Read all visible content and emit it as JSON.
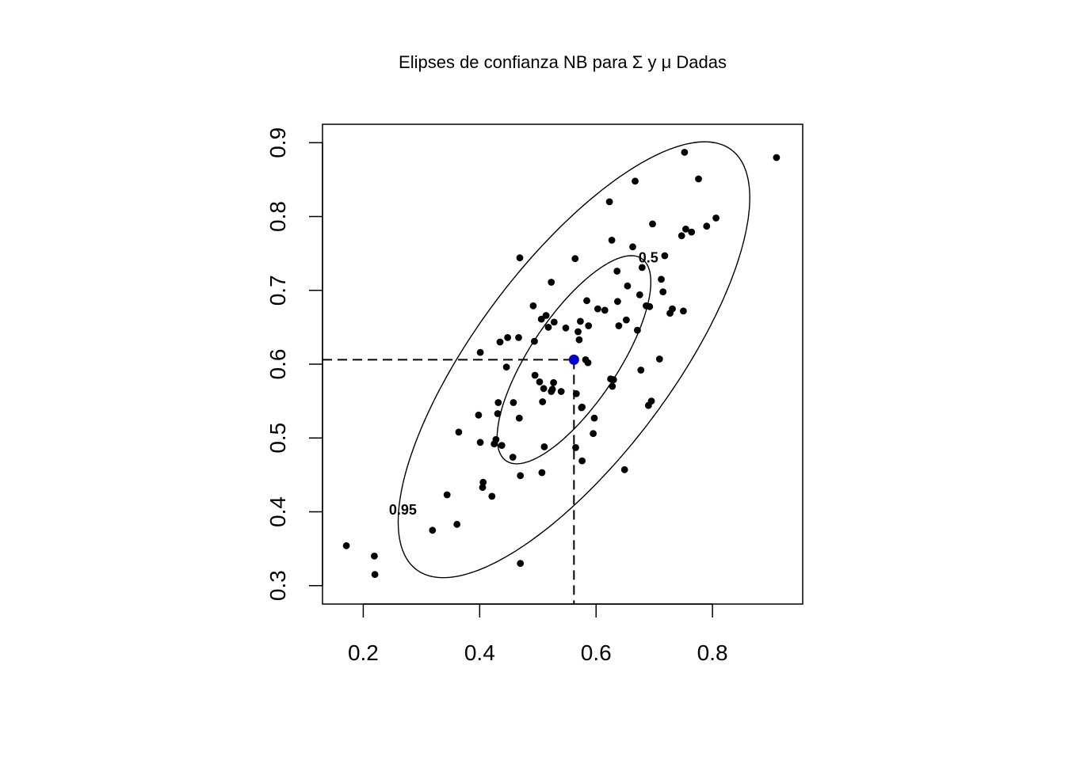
{
  "chart_data": {
    "type": "scatter",
    "title": "Elipses de confianza NB para Σ y μ Dadas",
    "xlabel": "",
    "ylabel": "",
    "xlim": [
      0.13,
      0.955
    ],
    "ylim": [
      0.275,
      0.925
    ],
    "x_ticks": [
      0.2,
      0.4,
      0.6,
      0.8
    ],
    "x_tick_labels": [
      "0.2",
      "0.4",
      "0.6",
      "0.8"
    ],
    "y_ticks": [
      0.3,
      0.4,
      0.5,
      0.6,
      0.7,
      0.8,
      0.9
    ],
    "y_tick_labels": [
      "0.3",
      "0.4",
      "0.5",
      "0.6",
      "0.7",
      "0.8",
      "0.9"
    ],
    "grid": false,
    "colors": {
      "points": "#000000",
      "mean": "#0000cc",
      "lines": "#000000"
    },
    "mean": {
      "x": 0.562,
      "y": 0.606
    },
    "ellipses": [
      {
        "label": "0.5",
        "center": [
          0.562,
          0.606
        ],
        "x_range": [
          0.43,
          0.694
        ],
        "y_range": [
          0.465,
          0.747
        ],
        "label_at": [
          0.69,
          0.738
        ]
      },
      {
        "label": "0.95",
        "center": [
          0.562,
          0.606
        ],
        "x_range": [
          0.26,
          0.864
        ],
        "y_range": [
          0.3165,
          0.907
        ],
        "label_at": [
          0.268,
          0.396
        ]
      }
    ],
    "points": [
      [
        0.171,
        0.354
      ],
      [
        0.219,
        0.34
      ],
      [
        0.22,
        0.315
      ],
      [
        0.319,
        0.375
      ],
      [
        0.344,
        0.423
      ],
      [
        0.361,
        0.383
      ],
      [
        0.364,
        0.508
      ],
      [
        0.398,
        0.531
      ],
      [
        0.401,
        0.616
      ],
      [
        0.401,
        0.494
      ],
      [
        0.405,
        0.433
      ],
      [
        0.406,
        0.44
      ],
      [
        0.421,
        0.421
      ],
      [
        0.425,
        0.492
      ],
      [
        0.428,
        0.498
      ],
      [
        0.431,
        0.533
      ],
      [
        0.432,
        0.548
      ],
      [
        0.435,
        0.63
      ],
      [
        0.438,
        0.49
      ],
      [
        0.446,
        0.596
      ],
      [
        0.448,
        0.636
      ],
      [
        0.457,
        0.474
      ],
      [
        0.458,
        0.548
      ],
      [
        0.467,
        0.636
      ],
      [
        0.468,
        0.527
      ],
      [
        0.469,
        0.744
      ],
      [
        0.47,
        0.449
      ],
      [
        0.47,
        0.33
      ],
      [
        0.492,
        0.679
      ],
      [
        0.494,
        0.631
      ],
      [
        0.495,
        0.585
      ],
      [
        0.503,
        0.576
      ],
      [
        0.506,
        0.661
      ],
      [
        0.507,
        0.453
      ],
      [
        0.508,
        0.549
      ],
      [
        0.51,
        0.567
      ],
      [
        0.511,
        0.488
      ],
      [
        0.514,
        0.666
      ],
      [
        0.518,
        0.65
      ],
      [
        0.523,
        0.711
      ],
      [
        0.523,
        0.563
      ],
      [
        0.525,
        0.566
      ],
      [
        0.527,
        0.575
      ],
      [
        0.528,
        0.657
      ],
      [
        0.54,
        0.563
      ],
      [
        0.548,
        0.649
      ],
      [
        0.564,
        0.743
      ],
      [
        0.565,
        0.487
      ],
      [
        0.566,
        0.56
      ],
      [
        0.569,
        0.644
      ],
      [
        0.571,
        0.633
      ],
      [
        0.573,
        0.658
      ],
      [
        0.575,
        0.541
      ],
      [
        0.576,
        0.469
      ],
      [
        0.576,
        0.542
      ],
      [
        0.582,
        0.606
      ],
      [
        0.584,
        0.686
      ],
      [
        0.586,
        0.602
      ],
      [
        0.587,
        0.652
      ],
      [
        0.595,
        0.506
      ],
      [
        0.597,
        0.527
      ],
      [
        0.603,
        0.675
      ],
      [
        0.615,
        0.673
      ],
      [
        0.623,
        0.82
      ],
      [
        0.625,
        0.58
      ],
      [
        0.627,
        0.768
      ],
      [
        0.628,
        0.57
      ],
      [
        0.63,
        0.579
      ],
      [
        0.636,
        0.726
      ],
      [
        0.637,
        0.685
      ],
      [
        0.639,
        0.652
      ],
      [
        0.649,
        0.457
      ],
      [
        0.652,
        0.66
      ],
      [
        0.654,
        0.706
      ],
      [
        0.663,
        0.759
      ],
      [
        0.667,
        0.848
      ],
      [
        0.671,
        0.646
      ],
      [
        0.675,
        0.694
      ],
      [
        0.677,
        0.592
      ],
      [
        0.679,
        0.731
      ],
      [
        0.686,
        0.679
      ],
      [
        0.69,
        0.544
      ],
      [
        0.692,
        0.678
      ],
      [
        0.695,
        0.55
      ],
      [
        0.697,
        0.79
      ],
      [
        0.709,
        0.607
      ],
      [
        0.712,
        0.715
      ],
      [
        0.715,
        0.698
      ],
      [
        0.718,
        0.747
      ],
      [
        0.727,
        0.669
      ],
      [
        0.731,
        0.675
      ],
      [
        0.747,
        0.774
      ],
      [
        0.75,
        0.672
      ],
      [
        0.752,
        0.887
      ],
      [
        0.754,
        0.783
      ],
      [
        0.764,
        0.779
      ],
      [
        0.776,
        0.851
      ],
      [
        0.79,
        0.787
      ],
      [
        0.806,
        0.798
      ],
      [
        0.91,
        0.88
      ]
    ]
  }
}
